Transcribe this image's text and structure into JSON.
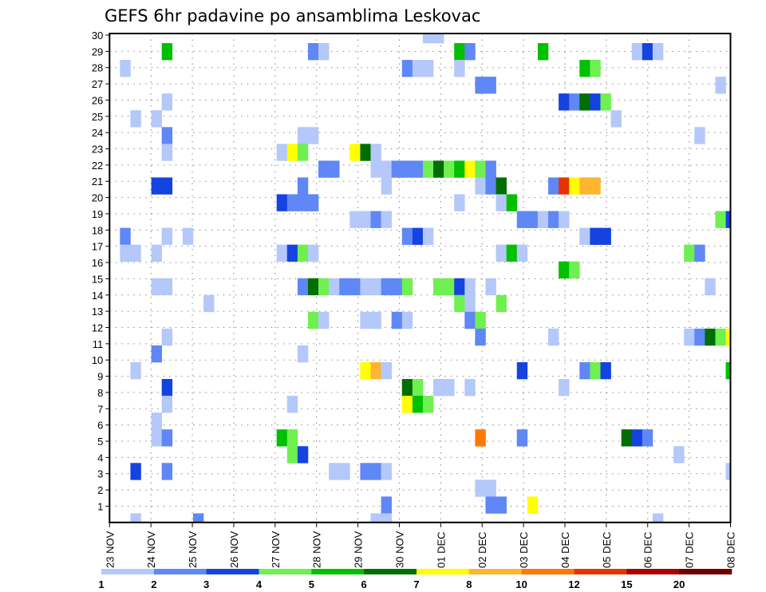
{
  "chart_data": {
    "type": "heatmap",
    "title": "GEFS 6hr padavine po ansamblima Leskovac",
    "xlabel": "",
    "ylabel": "",
    "time_step_hours": 6,
    "x_tick_labels": [
      "23 NOV",
      "24 NOV",
      "25 NOV",
      "26 NOV",
      "27 NOV",
      "28 NOV",
      "29 NOV",
      "30 NOV",
      "01 DEC",
      "02 DEC",
      "03 DEC",
      "04 DEC",
      "05 DEC",
      "06 DEC",
      "07 DEC",
      "08 DEC"
    ],
    "y_tick_labels": [
      "1",
      "2",
      "3",
      "4",
      "5",
      "6",
      "7",
      "8",
      "9",
      "10",
      "11",
      "12",
      "13",
      "14",
      "15",
      "16",
      "17",
      "18",
      "19",
      "20",
      "21",
      "22",
      "23",
      "24",
      "25",
      "26",
      "27",
      "28",
      "29",
      "30"
    ],
    "ylim": [
      0,
      30
    ],
    "grid": true,
    "legend": {
      "placement": "bottom",
      "labels": [
        "1",
        "2",
        "3",
        "4",
        "5",
        "6",
        "7",
        "8",
        "10",
        "12",
        "15",
        "20"
      ],
      "bins": [
        {
          "min": 1,
          "max": 2,
          "color": "#b4c8fa"
        },
        {
          "min": 2,
          "max": 3,
          "color": "#5f87f5"
        },
        {
          "min": 3,
          "max": 4,
          "color": "#1443e0"
        },
        {
          "min": 4,
          "max": 5,
          "color": "#6ef050"
        },
        {
          "min": 5,
          "max": 6,
          "color": "#00c000"
        },
        {
          "min": 6,
          "max": 7,
          "color": "#006e00"
        },
        {
          "min": 7,
          "max": 8,
          "color": "#ffff00"
        },
        {
          "min": 8,
          "max": 10,
          "color": "#ffb432"
        },
        {
          "min": 10,
          "max": 12,
          "color": "#ff7800"
        },
        {
          "min": 12,
          "max": 15,
          "color": "#e63200"
        },
        {
          "min": 15,
          "max": 20,
          "color": "#aa0000"
        },
        {
          "min": 20,
          "max": null,
          "color": "#6e0000"
        }
      ]
    },
    "rows": [
      {
        "member": 30,
        "cells": [
          [
            30,
            0
          ],
          [
            31,
            0
          ]
        ]
      },
      {
        "member": 29,
        "cells": [
          [
            5,
            4
          ],
          [
            19,
            1
          ],
          [
            20,
            0
          ],
          [
            33,
            4
          ],
          [
            34,
            1
          ],
          [
            41,
            4
          ],
          [
            50,
            0
          ],
          [
            51,
            2
          ],
          [
            52,
            0
          ]
        ]
      },
      {
        "member": 28,
        "cells": [
          [
            1,
            0
          ],
          [
            28,
            1
          ],
          [
            29,
            0
          ],
          [
            30,
            0
          ],
          [
            33,
            0
          ],
          [
            45,
            4
          ],
          [
            46,
            3
          ]
        ]
      },
      {
        "member": 27,
        "cells": [
          [
            35,
            1
          ],
          [
            36,
            1
          ],
          [
            58,
            0
          ]
        ]
      },
      {
        "member": 26,
        "cells": [
          [
            5,
            0
          ],
          [
            43,
            2
          ],
          [
            44,
            1
          ],
          [
            45,
            5
          ],
          [
            46,
            2
          ],
          [
            47,
            3
          ]
        ]
      },
      {
        "member": 25,
        "cells": [
          [
            2,
            0
          ],
          [
            4,
            0
          ],
          [
            48,
            0
          ]
        ]
      },
      {
        "member": 24,
        "cells": [
          [
            5,
            1
          ],
          [
            18,
            0
          ],
          [
            19,
            0
          ],
          [
            56,
            0
          ]
        ]
      },
      {
        "member": 23,
        "cells": [
          [
            5,
            0
          ],
          [
            16,
            0
          ],
          [
            17,
            6
          ],
          [
            18,
            3
          ],
          [
            23,
            6
          ],
          [
            24,
            5
          ],
          [
            25,
            0
          ]
        ]
      },
      {
        "member": 22,
        "cells": [
          [
            20,
            1
          ],
          [
            21,
            1
          ],
          [
            25,
            0
          ],
          [
            26,
            0
          ],
          [
            27,
            1
          ],
          [
            28,
            1
          ],
          [
            29,
            1
          ],
          [
            30,
            3
          ],
          [
            31,
            5
          ],
          [
            32,
            3
          ],
          [
            33,
            4
          ],
          [
            34,
            6
          ],
          [
            35,
            3
          ],
          [
            36,
            1
          ]
        ]
      },
      {
        "member": 21,
        "cells": [
          [
            4,
            2
          ],
          [
            5,
            2
          ],
          [
            18,
            1
          ],
          [
            26,
            0
          ],
          [
            35,
            0
          ],
          [
            36,
            1
          ],
          [
            37,
            5
          ],
          [
            42,
            1
          ],
          [
            43,
            9
          ],
          [
            44,
            6
          ],
          [
            45,
            7
          ],
          [
            46,
            7
          ]
        ]
      },
      {
        "member": 20,
        "cells": [
          [
            16,
            2
          ],
          [
            17,
            1
          ],
          [
            18,
            1
          ],
          [
            19,
            1
          ],
          [
            33,
            0
          ],
          [
            37,
            0
          ],
          [
            38,
            4
          ]
        ]
      },
      {
        "member": 19,
        "cells": [
          [
            23,
            0
          ],
          [
            24,
            0
          ],
          [
            25,
            1
          ],
          [
            26,
            0
          ],
          [
            39,
            1
          ],
          [
            40,
            1
          ],
          [
            41,
            0
          ],
          [
            42,
            1
          ],
          [
            43,
            0
          ],
          [
            58,
            3
          ],
          [
            59,
            2
          ]
        ]
      },
      {
        "member": 18,
        "cells": [
          [
            1,
            1
          ],
          [
            5,
            0
          ],
          [
            7,
            0
          ],
          [
            28,
            1
          ],
          [
            29,
            2
          ],
          [
            30,
            0
          ],
          [
            45,
            0
          ],
          [
            46,
            2
          ],
          [
            47,
            2
          ]
        ]
      },
      {
        "member": 17,
        "cells": [
          [
            1,
            0
          ],
          [
            2,
            0
          ],
          [
            4,
            0
          ],
          [
            16,
            0
          ],
          [
            17,
            2
          ],
          [
            18,
            3
          ],
          [
            19,
            0
          ],
          [
            37,
            0
          ],
          [
            38,
            4
          ],
          [
            39,
            0
          ],
          [
            55,
            3
          ],
          [
            56,
            1
          ]
        ]
      },
      {
        "member": 16,
        "cells": [
          [
            43,
            4
          ],
          [
            44,
            3
          ]
        ]
      },
      {
        "member": 15,
        "cells": [
          [
            4,
            0
          ],
          [
            5,
            0
          ],
          [
            18,
            1
          ],
          [
            19,
            5
          ],
          [
            20,
            3
          ],
          [
            21,
            0
          ],
          [
            22,
            1
          ],
          [
            23,
            1
          ],
          [
            24,
            0
          ],
          [
            25,
            0
          ],
          [
            26,
            1
          ],
          [
            27,
            1
          ],
          [
            28,
            3
          ],
          [
            31,
            3
          ],
          [
            32,
            3
          ],
          [
            33,
            2
          ],
          [
            34,
            0
          ],
          [
            36,
            0
          ],
          [
            57,
            0
          ]
        ]
      },
      {
        "member": 14,
        "cells": [
          [
            9,
            0
          ],
          [
            33,
            3
          ],
          [
            34,
            0
          ],
          [
            37,
            3
          ]
        ]
      },
      {
        "member": 13,
        "cells": [
          [
            19,
            3
          ],
          [
            20,
            0
          ],
          [
            24,
            0
          ],
          [
            25,
            0
          ],
          [
            27,
            1
          ],
          [
            28,
            0
          ],
          [
            34,
            1
          ],
          [
            35,
            3
          ]
        ]
      },
      {
        "member": 12,
        "cells": [
          [
            5,
            0
          ],
          [
            35,
            1
          ],
          [
            42,
            0
          ],
          [
            55,
            0
          ],
          [
            56,
            1
          ],
          [
            57,
            5
          ],
          [
            58,
            3
          ],
          [
            59,
            6
          ]
        ]
      },
      {
        "member": 11,
        "cells": [
          [
            4,
            1
          ],
          [
            18,
            0
          ]
        ]
      },
      {
        "member": 10,
        "cells": [
          [
            2,
            0
          ],
          [
            24,
            6
          ],
          [
            25,
            7
          ],
          [
            26,
            0
          ],
          [
            39,
            2
          ],
          [
            45,
            1
          ],
          [
            46,
            3
          ],
          [
            47,
            2
          ],
          [
            59,
            4
          ]
        ]
      },
      {
        "member": 9,
        "cells": [
          [
            5,
            2
          ],
          [
            28,
            5
          ],
          [
            29,
            3
          ],
          [
            31,
            0
          ],
          [
            32,
            0
          ],
          [
            34,
            0
          ],
          [
            43,
            0
          ]
        ]
      },
      {
        "member": 8,
        "cells": [
          [
            5,
            0
          ],
          [
            17,
            0
          ],
          [
            28,
            6
          ],
          [
            29,
            4
          ],
          [
            30,
            3
          ]
        ]
      },
      {
        "member": 7,
        "cells": [
          [
            4,
            0
          ]
        ]
      },
      {
        "member": 6,
        "cells": [
          [
            4,
            0
          ],
          [
            5,
            1
          ],
          [
            16,
            4
          ],
          [
            17,
            3
          ],
          [
            35,
            8
          ],
          [
            39,
            1
          ],
          [
            49,
            5
          ],
          [
            50,
            2
          ],
          [
            51,
            1
          ]
        ]
      },
      {
        "member": 5,
        "cells": [
          [
            17,
            3
          ],
          [
            18,
            2
          ],
          [
            54,
            0
          ]
        ]
      },
      {
        "member": 4,
        "cells": [
          [
            2,
            2
          ],
          [
            5,
            1
          ],
          [
            21,
            0
          ],
          [
            22,
            0
          ],
          [
            24,
            1
          ],
          [
            25,
            1
          ],
          [
            26,
            0
          ],
          [
            59,
            0
          ]
        ]
      },
      {
        "member": 3,
        "cells": [
          [
            35,
            0
          ],
          [
            36,
            0
          ]
        ]
      },
      {
        "member": 2,
        "cells": [
          [
            26,
            1
          ],
          [
            36,
            1
          ],
          [
            37,
            1
          ],
          [
            40,
            6
          ]
        ]
      },
      {
        "member": 1,
        "cells": [
          [
            2,
            0
          ],
          [
            8,
            1
          ],
          [
            25,
            0
          ],
          [
            26,
            0
          ],
          [
            52,
            0
          ]
        ]
      }
    ]
  }
}
